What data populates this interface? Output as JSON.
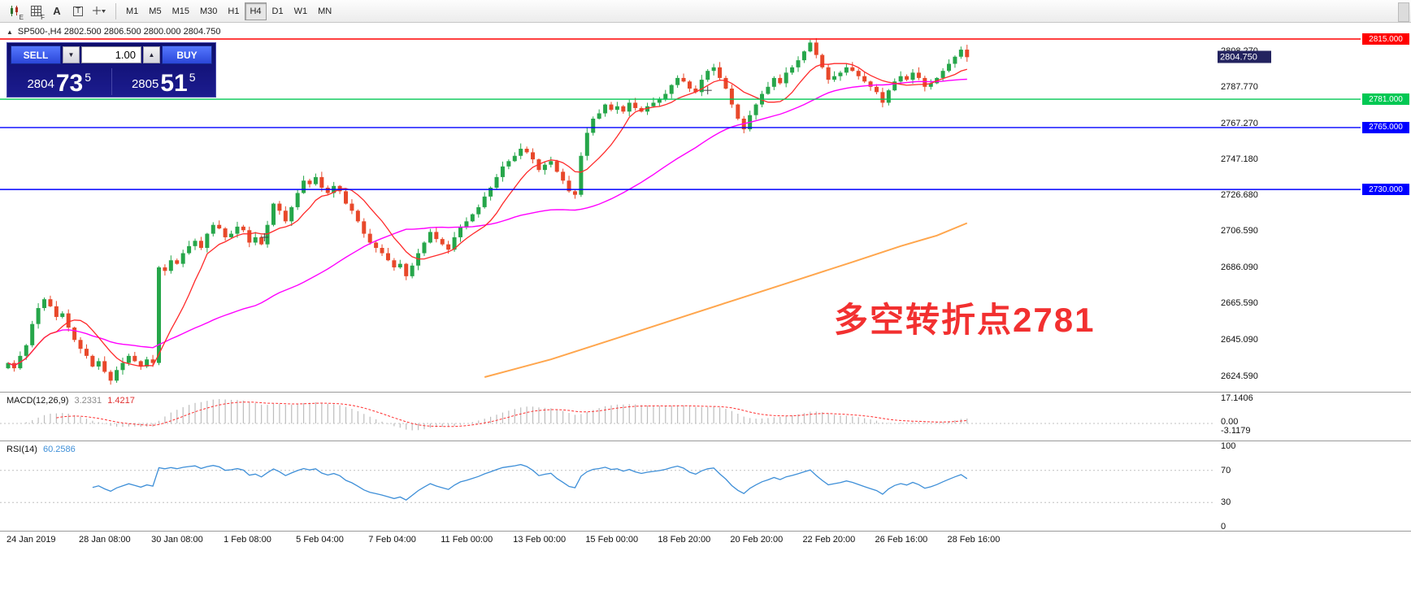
{
  "toolbar": {
    "icon_labels": {
      "chart_sub": "E",
      "grid_sub": "F",
      "text": "A",
      "textbox": "T"
    },
    "timeframes": [
      "M1",
      "M5",
      "M15",
      "M30",
      "H1",
      "H4",
      "D1",
      "W1",
      "MN"
    ],
    "active_timeframe": "H4"
  },
  "chart": {
    "title_text": "SP500-,H4  2802.500 2806.500 2800.000 2804.750",
    "annotation": "多空转折点2781"
  },
  "trade": {
    "sell_label": "SELL",
    "buy_label": "BUY",
    "volume": "1.00",
    "bid": {
      "main": "2804",
      "big": "73",
      "sup": "5"
    },
    "ask": {
      "main": "2805",
      "big": "51",
      "sup": "5"
    }
  },
  "macd": {
    "label": "MACD(12,26,9)",
    "value": "3.2331",
    "signal_value": "1.4217",
    "scale_labels": [
      "17.1406",
      "0.00",
      "-3.1179"
    ],
    "params": {
      "fast": 12,
      "slow": 26,
      "signal": 9
    }
  },
  "rsi": {
    "label": "RSI(14)",
    "value": "60.2586",
    "period": 14,
    "levels": [
      "100",
      "70",
      "30",
      "0"
    ],
    "level_values": [
      100,
      70,
      30,
      0
    ],
    "dotted_levels": [
      70,
      30
    ]
  },
  "time_axis": {
    "bars_per_label": 12,
    "labels": [
      "24 Jan 2019",
      "28 Jan 08:00",
      "30 Jan 08:00",
      "1 Feb 08:00",
      "5 Feb 04:00",
      "7 Feb 04:00",
      "11 Feb 00:00",
      "13 Feb 00:00",
      "15 Feb 00:00",
      "18 Feb 20:00",
      "20 Feb 20:00",
      "22 Feb 20:00",
      "26 Feb 16:00",
      "28 Feb 16:00"
    ]
  },
  "chart_data": {
    "type": "candlestick",
    "symbol": "SP500-",
    "timeframe": "H4",
    "ohlc": {
      "open": 2802.5,
      "high": 2806.5,
      "low": 2800.0,
      "close": 2804.75
    },
    "closes": [
      2632,
      2629,
      2636,
      2642,
      2654,
      2663,
      2668,
      2664,
      2658,
      2660,
      2652,
      2645,
      2640,
      2636,
      2630,
      2633,
      2627,
      2622,
      2628,
      2632,
      2636,
      2633,
      2630,
      2634,
      2632,
      2686,
      2684,
      2690,
      2688,
      2694,
      2698,
      2701,
      2697,
      2705,
      2710,
      2708,
      2703,
      2705,
      2709,
      2707,
      2700,
      2703,
      2699,
      2710,
      2722,
      2718,
      2712,
      2720,
      2728,
      2735,
      2733,
      2737,
      2731,
      2728,
      2732,
      2729,
      2722,
      2718,
      2712,
      2705,
      2700,
      2697,
      2694,
      2690,
      2686,
      2688,
      2681,
      2687,
      2694,
      2700,
      2706,
      2702,
      2699,
      2696,
      2703,
      2709,
      2712,
      2716,
      2720,
      2726,
      2731,
      2737,
      2743,
      2746,
      2749,
      2753,
      2751,
      2747,
      2741,
      2744,
      2746,
      2740,
      2735,
      2729,
      2727,
      2749,
      2762,
      2770,
      2773,
      2778,
      2775,
      2777,
      2774,
      2779,
      2776,
      2774,
      2777,
      2779,
      2781,
      2784,
      2789,
      2793,
      2791,
      2787,
      2785,
      2792,
      2797,
      2799,
      2793,
      2787,
      2778,
      2770,
      2764,
      2772,
      2778,
      2784,
      2788,
      2793,
      2790,
      2796,
      2799,
      2803,
      2808,
      2813,
      2806,
      2799,
      2792,
      2794,
      2796,
      2799,
      2797,
      2794,
      2791,
      2788,
      2785,
      2779,
      2786,
      2791,
      2794,
      2792,
      2796,
      2793,
      2788,
      2790,
      2793,
      2797,
      2801,
      2805,
      2809,
      2804.75
    ],
    "y_ticks": [
      {
        "v": 2808.27,
        "label": "2808.270"
      },
      {
        "v": 2787.77,
        "label": "2787.770"
      },
      {
        "v": 2767.27,
        "label": "2767.270"
      },
      {
        "v": 2747.18,
        "label": "2747.180"
      },
      {
        "v": 2726.68,
        "label": "2726.680"
      },
      {
        "v": 2706.59,
        "label": "2706.590"
      },
      {
        "v": 2686.09,
        "label": "2686.090"
      },
      {
        "v": 2665.59,
        "label": "2665.590"
      },
      {
        "v": 2645.09,
        "label": "2645.090"
      },
      {
        "v": 2624.59,
        "label": "2624.590"
      }
    ],
    "hlines": [
      {
        "price": 2815,
        "label": "2815.000",
        "color": "#ff0000"
      },
      {
        "price": 2781,
        "label": "2781.000",
        "color": "#00c853"
      },
      {
        "price": 2765,
        "label": "2765.000",
        "color": "#0000ff"
      },
      {
        "price": 2730,
        "label": "2730.000",
        "color": "#0000ff"
      }
    ],
    "current_price": 2804.75,
    "current_price_label": "2804.750",
    "ma_fast_period": 9,
    "ma_slow_period": 42,
    "ma_long_anchors": [
      [
        79,
        2624
      ],
      [
        90,
        2634
      ],
      [
        100,
        2645
      ],
      [
        110,
        2656
      ],
      [
        120,
        2667
      ],
      [
        130,
        2678
      ],
      [
        140,
        2689
      ],
      [
        148,
        2698
      ],
      [
        154,
        2704
      ],
      [
        159,
        2711
      ]
    ],
    "cross_markers": [
      {
        "bar": 42.5,
        "price": 2703
      },
      {
        "bar": 116,
        "price": 2786
      }
    ],
    "colors": {
      "up": "#26a64a",
      "down": "#e8482a",
      "ma_fast": "#ff2a2a",
      "ma_slow": "#ff00ff",
      "ma_long": "#ffa64d",
      "macd_hist": "#bdbdbd",
      "macd_signal": "#ff3030",
      "rsi_line": "#3e8fd8",
      "level_dotted": "#c0c0c0"
    }
  }
}
